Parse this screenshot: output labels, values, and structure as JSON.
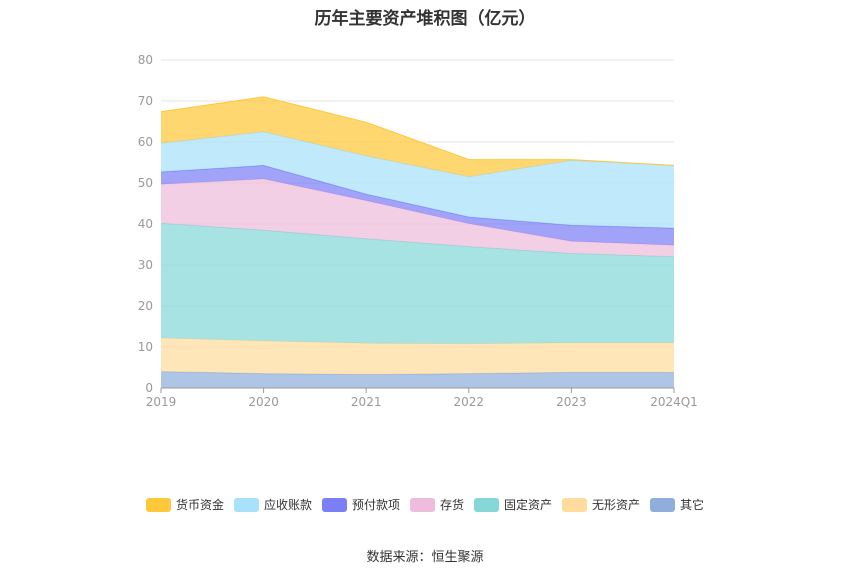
{
  "chart_data": {
    "type": "area",
    "stacked": true,
    "title": "历年主要资产堆积图（亿元）",
    "x": [
      "2019",
      "2020",
      "2021",
      "2022",
      "2023",
      "2024Q1"
    ],
    "ylim": [
      0,
      80
    ],
    "yticks": [
      "0",
      "10",
      "20",
      "30",
      "40",
      "50",
      "60",
      "70",
      "80"
    ],
    "grid": true,
    "legend_position": "bottom",
    "series": [
      {
        "name": "其它",
        "color": "#8faedd",
        "values": [
          4.0,
          3.5,
          3.3,
          3.5,
          3.8,
          3.8
        ]
      },
      {
        "name": "无形资产",
        "color": "#ffdc9e",
        "values": [
          8.2,
          8.0,
          7.6,
          7.3,
          7.2,
          7.2
        ]
      },
      {
        "name": "固定资产",
        "color": "#86d8d8",
        "values": [
          28.0,
          27.0,
          25.5,
          23.7,
          21.8,
          21.0
        ]
      },
      {
        "name": "存货",
        "color": "#eebcdc",
        "values": [
          9.5,
          12.5,
          9.3,
          5.6,
          3.0,
          2.8
        ]
      },
      {
        "name": "预付款项",
        "color": "#7b7ff5",
        "values": [
          3.0,
          3.3,
          1.6,
          1.6,
          3.9,
          4.2
        ]
      },
      {
        "name": "应收账款",
        "color": "#a9e1fb",
        "values": [
          7.0,
          8.2,
          9.3,
          9.8,
          15.8,
          15.3
        ]
      },
      {
        "name": "货币资金",
        "color": "#ffc73a",
        "values": [
          7.7,
          8.5,
          8.2,
          4.2,
          0.2,
          0.0
        ]
      }
    ],
    "legend_order": [
      "货币资金",
      "应收账款",
      "预付款项",
      "存货",
      "固定资产",
      "无形资产",
      "其它"
    ]
  },
  "source_text": "数据来源：恒生聚源"
}
